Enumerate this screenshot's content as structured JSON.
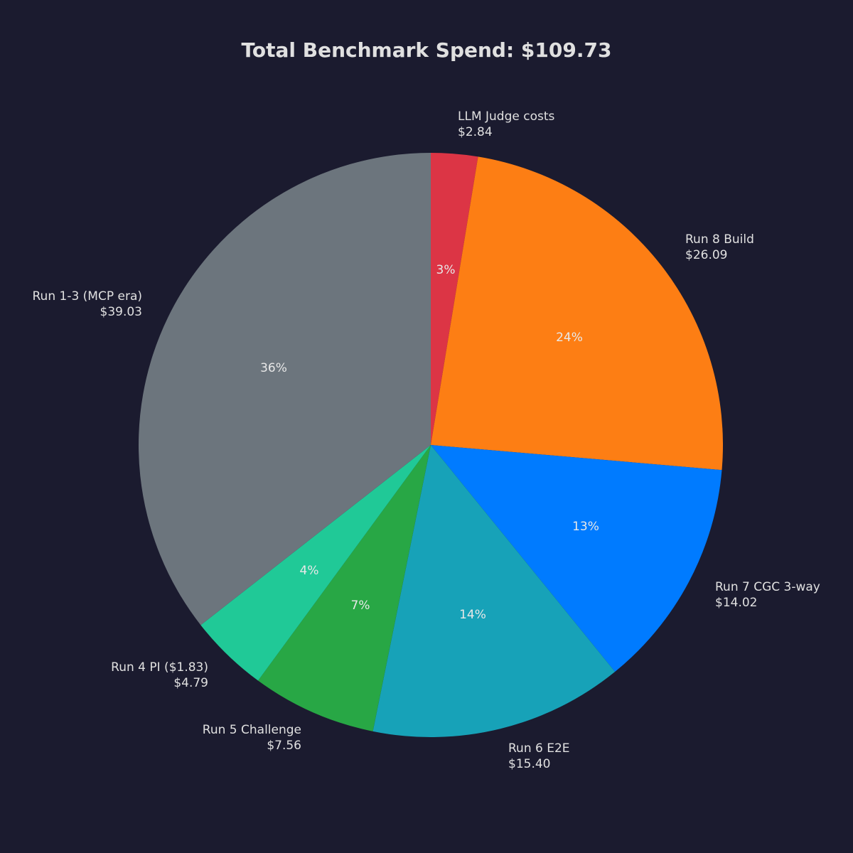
{
  "chart_data": {
    "type": "pie",
    "title": "Total Benchmark Spend: $109.73",
    "total": 109.73,
    "start_angle": "90deg (top), clockwise",
    "slices": [
      {
        "label": "LLM Judge costs",
        "value": 2.84,
        "value_label": "$2.84",
        "pct_label": "3%",
        "color": "#dc3545"
      },
      {
        "label": "Run 8 Build",
        "value": 26.09,
        "value_label": "$26.09",
        "pct_label": "24%",
        "color": "#fd7e14"
      },
      {
        "label": "Run 7 CGC 3-way",
        "value": 14.02,
        "value_label": "$14.02",
        "pct_label": "13%",
        "color": "#007bff"
      },
      {
        "label": "Run 6 E2E",
        "value": 15.4,
        "value_label": "$15.40",
        "pct_label": "14%",
        "color": "#17a2b8"
      },
      {
        "label": "Run 5 Challenge",
        "value": 7.56,
        "value_label": "$7.56",
        "pct_label": "7%",
        "color": "#28a745"
      },
      {
        "label": "Run 4 PI ($1.83)",
        "value": 4.79,
        "value_label": "$4.79",
        "pct_label": "4%",
        "color": "#20c997"
      },
      {
        "label": "Run 1-3 (MCP era)",
        "value": 39.03,
        "value_label": "$39.03",
        "pct_label": "36%",
        "color": "#6c757d"
      }
    ]
  },
  "style": {
    "background": "#1b1b2f",
    "text_color": "#e0e0e0"
  }
}
